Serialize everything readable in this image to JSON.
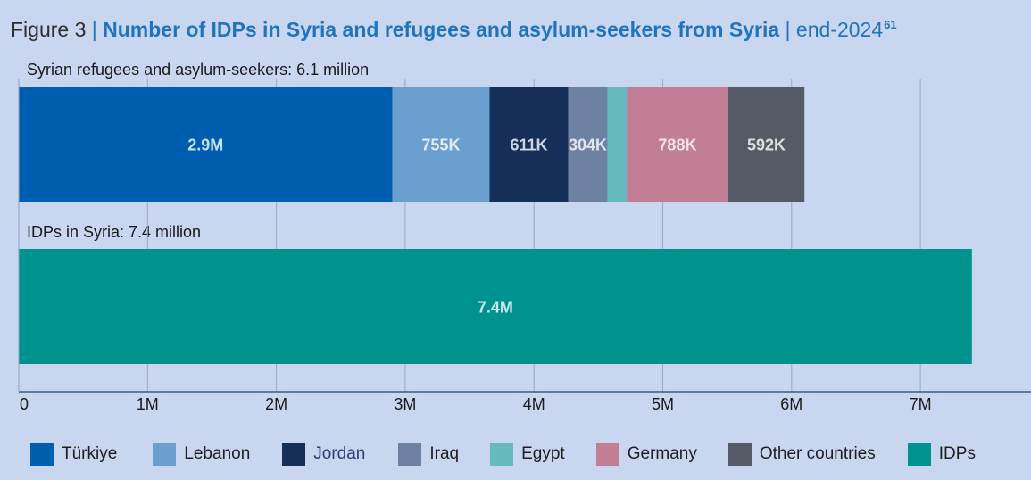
{
  "title": {
    "figure": "Figure 3",
    "separator": "|",
    "main": "Number of IDPs in Syria and refugees and asylum-seekers from Syria",
    "separator2": "|",
    "date": "end-2024",
    "footnote": "61"
  },
  "chart_data": {
    "type": "bar",
    "orientation": "horizontal",
    "stacked": true,
    "xlim": [
      0,
      7800000
    ],
    "x_ticks": [
      "0",
      "1M",
      "2M",
      "3M",
      "4M",
      "5M",
      "6M",
      "7M"
    ],
    "x_tick_values": [
      0,
      1000000,
      2000000,
      3000000,
      4000000,
      5000000,
      6000000,
      7000000
    ],
    "grid": "vertical",
    "legend_position": "bottom",
    "groups": [
      {
        "label": "Syrian refugees and asylum-seekers: 6.1 million",
        "segments": [
          {
            "name": "Türkiye",
            "value": 2900000,
            "label": "2.9M",
            "color": "#005eb0"
          },
          {
            "name": "Lebanon",
            "value": 755000,
            "label": "755K",
            "color": "#6a9fd0"
          },
          {
            "name": "Jordan",
            "value": 611000,
            "label": "611K",
            "color": "#162f58"
          },
          {
            "name": "Iraq",
            "value": 304000,
            "label": "304K",
            "color": "#6d82a2"
          },
          {
            "name": "Egypt",
            "value": 150000,
            "label": "",
            "color": "#66b9bd"
          },
          {
            "name": "Germany",
            "value": 788000,
            "label": "788K",
            "color": "#c27e94"
          },
          {
            "name": "Other countries",
            "value": 592000,
            "label": "592K",
            "color": "#555b66"
          }
        ]
      },
      {
        "label": "IDPs in Syria: 7.4 million",
        "segments": [
          {
            "name": "IDPs",
            "value": 7400000,
            "label": "7.4M",
            "color": "#00928f"
          }
        ]
      }
    ],
    "legend": [
      {
        "name": "Türkiye",
        "color": "#005eb0"
      },
      {
        "name": "Lebanon",
        "color": "#6a9fd0"
      },
      {
        "name": "Jordan",
        "color": "#162f58"
      },
      {
        "name": "Iraq",
        "color": "#6d82a2"
      },
      {
        "name": "Egypt",
        "color": "#66b9bd"
      },
      {
        "name": "Germany",
        "color": "#c27e94"
      },
      {
        "name": "Other countries",
        "color": "#555b66"
      },
      {
        "name": "IDPs",
        "color": "#00928f"
      }
    ]
  }
}
